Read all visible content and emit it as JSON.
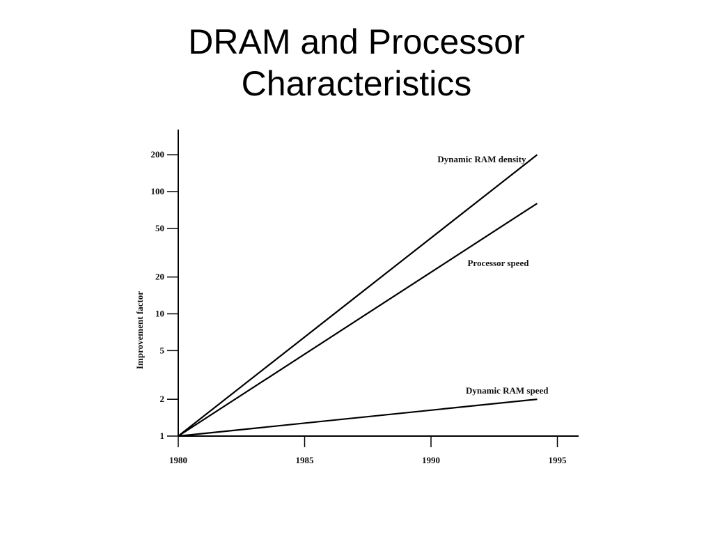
{
  "slide": {
    "title_line1": "DRAM and Processor",
    "title_line2": "Characteristics"
  },
  "chart_data": {
    "type": "line",
    "title": "",
    "xlabel": "",
    "ylabel": "Improvement factor",
    "yscale": "log",
    "xlim": [
      1980,
      1996
    ],
    "ylim": [
      1,
      300
    ],
    "x_ticks": [
      1980,
      1985,
      1990,
      1995
    ],
    "y_ticks": [
      1,
      2,
      5,
      10,
      20,
      50,
      100,
      200
    ],
    "grid": false,
    "legend": "inline labels",
    "series": [
      {
        "name": "Dynamic RAM density",
        "x": [
          1980,
          1994.2
        ],
        "y": [
          1,
          200
        ]
      },
      {
        "name": "Processor speed",
        "x": [
          1980,
          1994.2
        ],
        "y": [
          1,
          80
        ]
      },
      {
        "name": "Dynamic RAM speed",
        "x": [
          1980,
          1994.2
        ],
        "y": [
          1,
          2
        ]
      }
    ]
  }
}
